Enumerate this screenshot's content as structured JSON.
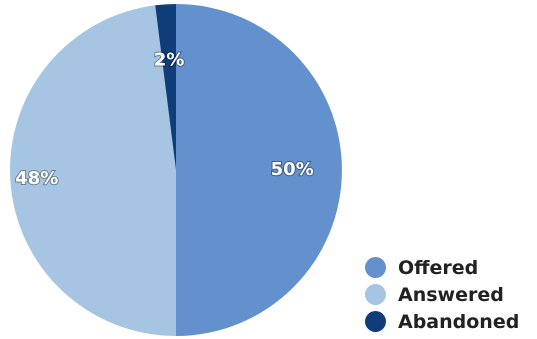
{
  "chart_data": {
    "type": "pie",
    "title": "",
    "slices": [
      {
        "label": "Offered",
        "value": 50,
        "display": "50%",
        "color": "#6391cd"
      },
      {
        "label": "Answered",
        "value": 48,
        "display": "48%",
        "color": "#a5c5e2"
      },
      {
        "label": "Abandoned",
        "value": 2,
        "display": "2%",
        "color": "#0f3d7a"
      }
    ],
    "legend_position": "bottom-right",
    "start_angle": "top",
    "direction": "clockwise"
  }
}
